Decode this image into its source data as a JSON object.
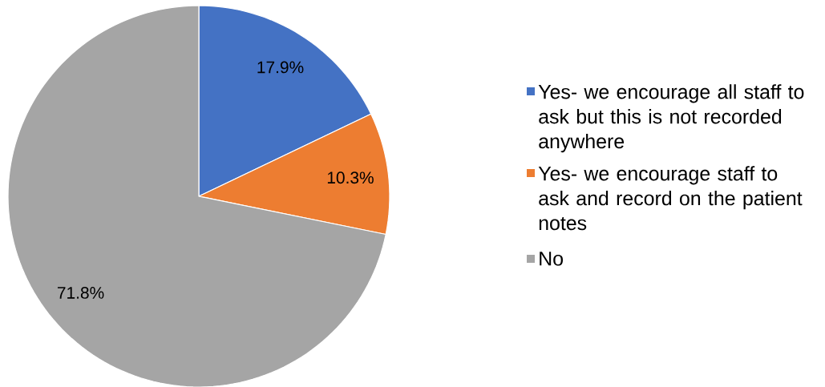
{
  "chart_data": {
    "type": "pie",
    "categories": [
      "Yes- we encourage all staff to ask but this is not recorded anywhere",
      "Yes- we encourage staff to ask and record on the patient notes",
      "No"
    ],
    "values": [
      17.9,
      10.3,
      71.8
    ],
    "colors": [
      "#4472c4",
      "#ed7d31",
      "#a5a5a5"
    ],
    "value_labels": [
      "17.9%",
      "10.3%",
      "71.8%"
    ],
    "legend": "right"
  }
}
